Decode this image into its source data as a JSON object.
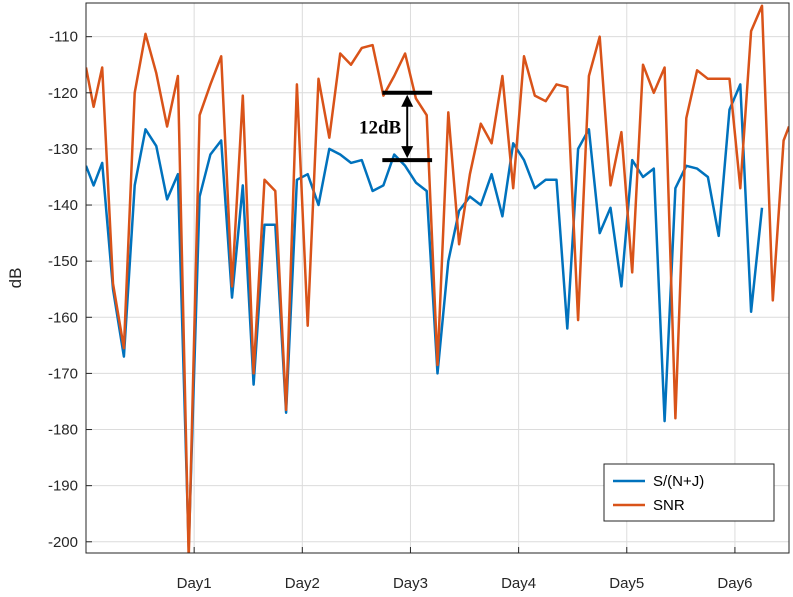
{
  "chart_data": {
    "type": "line",
    "title": "",
    "xlabel": "",
    "ylabel": "dB",
    "ylim": [
      -202,
      -104
    ],
    "yticks": [
      -200,
      -190,
      -180,
      -170,
      -160,
      -150,
      -140,
      -130,
      -120,
      -110
    ],
    "xlim": [
      0,
      6.5
    ],
    "xticks": [
      {
        "value": 1,
        "label": "Day1"
      },
      {
        "value": 2,
        "label": "Day2"
      },
      {
        "value": 3,
        "label": "Day3"
      },
      {
        "value": 4,
        "label": "Day4"
      },
      {
        "value": 5,
        "label": "Day5"
      },
      {
        "value": 6,
        "label": "Day6"
      }
    ],
    "grid": true,
    "legend_position": "bottom-right",
    "series": [
      {
        "name": "S/(N+J)",
        "color": "#0072BD",
        "x": [
          0,
          0.07,
          0.15,
          0.25,
          0.35,
          0.45,
          0.55,
          0.65,
          0.75,
          0.85,
          0.95,
          1.05,
          1.15,
          1.25,
          1.35,
          1.45,
          1.55,
          1.65,
          1.75,
          1.85,
          1.95,
          2.05,
          2.15,
          2.25,
          2.35,
          2.45,
          2.55,
          2.65,
          2.75,
          2.85,
          2.95,
          3.05,
          3.15,
          3.25,
          3.35,
          3.45,
          3.55,
          3.65,
          3.75,
          3.85,
          3.95,
          4.05,
          4.15,
          4.25,
          4.35,
          4.45,
          4.55,
          4.65,
          4.75,
          4.85,
          4.95,
          5.05,
          5.15,
          5.25,
          5.35,
          5.45,
          5.55,
          5.65,
          5.75,
          5.85,
          5.95,
          6.05,
          6.15,
          6.25,
          6.35
        ],
        "values": [
          -133,
          -136.5,
          -132.5,
          -155,
          -167,
          -136.5,
          -126.5,
          -129.5,
          -139,
          -134.5,
          -201,
          -138.5,
          -131,
          -128.5,
          -156.5,
          -136.5,
          -172,
          -143.5,
          -143.5,
          -177,
          -135.5,
          -134.5,
          -140,
          -130,
          -131,
          -132.5,
          -132,
          -137.5,
          -136.5,
          -131,
          -133,
          -136,
          -137.5,
          -170,
          -150,
          -141,
          -138.5,
          -140,
          -134.5,
          -142,
          -129,
          -132,
          -137,
          -135.5,
          -135.5,
          -162,
          -130,
          -126.5,
          -145,
          -140.5,
          -154.5,
          -132,
          -135,
          -133.5,
          -178.5,
          -137,
          -133,
          -133.5,
          -135,
          -145.5,
          -123,
          -118.5,
          -159,
          -140.5,
          null
        ]
      },
      {
        "name": "SNR",
        "color": "#D95319",
        "x": [
          0,
          0.07,
          0.15,
          0.25,
          0.35,
          0.45,
          0.55,
          0.65,
          0.75,
          0.85,
          0.95,
          1.05,
          1.15,
          1.25,
          1.35,
          1.45,
          1.55,
          1.65,
          1.75,
          1.85,
          1.95,
          2.05,
          2.15,
          2.25,
          2.35,
          2.45,
          2.55,
          2.65,
          2.75,
          2.85,
          2.95,
          3.05,
          3.15,
          3.25,
          3.35,
          3.45,
          3.55,
          3.65,
          3.75,
          3.85,
          3.95,
          4.05,
          4.15,
          4.25,
          4.35,
          4.45,
          4.55,
          4.65,
          4.75,
          4.85,
          4.95,
          5.05,
          5.15,
          5.25,
          5.35,
          5.45,
          5.55,
          5.65,
          5.75,
          5.85,
          5.95,
          6.05,
          6.15,
          6.25,
          6.35,
          6.45,
          6.5
        ],
        "values": [
          -115.5,
          -122.5,
          -115.5,
          -154,
          -165.5,
          -120,
          -109.5,
          -116.5,
          -126,
          -117,
          -203,
          -124,
          -118.5,
          -113.5,
          -154.5,
          -120.5,
          -170,
          -135.5,
          -137.5,
          -176.5,
          -118.5,
          -161.5,
          -117.5,
          -128,
          -113,
          -115,
          -112,
          -111.5,
          -120.5,
          -117,
          -113,
          -121,
          -124,
          -168.5,
          -123.5,
          -147,
          -134.5,
          -125.5,
          -129,
          -117,
          -137,
          -113.5,
          -120.5,
          -121.5,
          -118.5,
          -119,
          -160.5,
          -117,
          -110,
          -136.5,
          -127,
          -152,
          -115,
          -120,
          -115.5,
          -178,
          -124.5,
          -116,
          -117.5,
          -117.5,
          -117.5,
          -137,
          -109,
          -104.5,
          -157,
          -128.5,
          -126
        ]
      }
    ],
    "annotation": {
      "text": "12dB",
      "y_top": -120,
      "y_bottom": -132,
      "x": 2.97,
      "x_half_width": 0.23
    }
  }
}
